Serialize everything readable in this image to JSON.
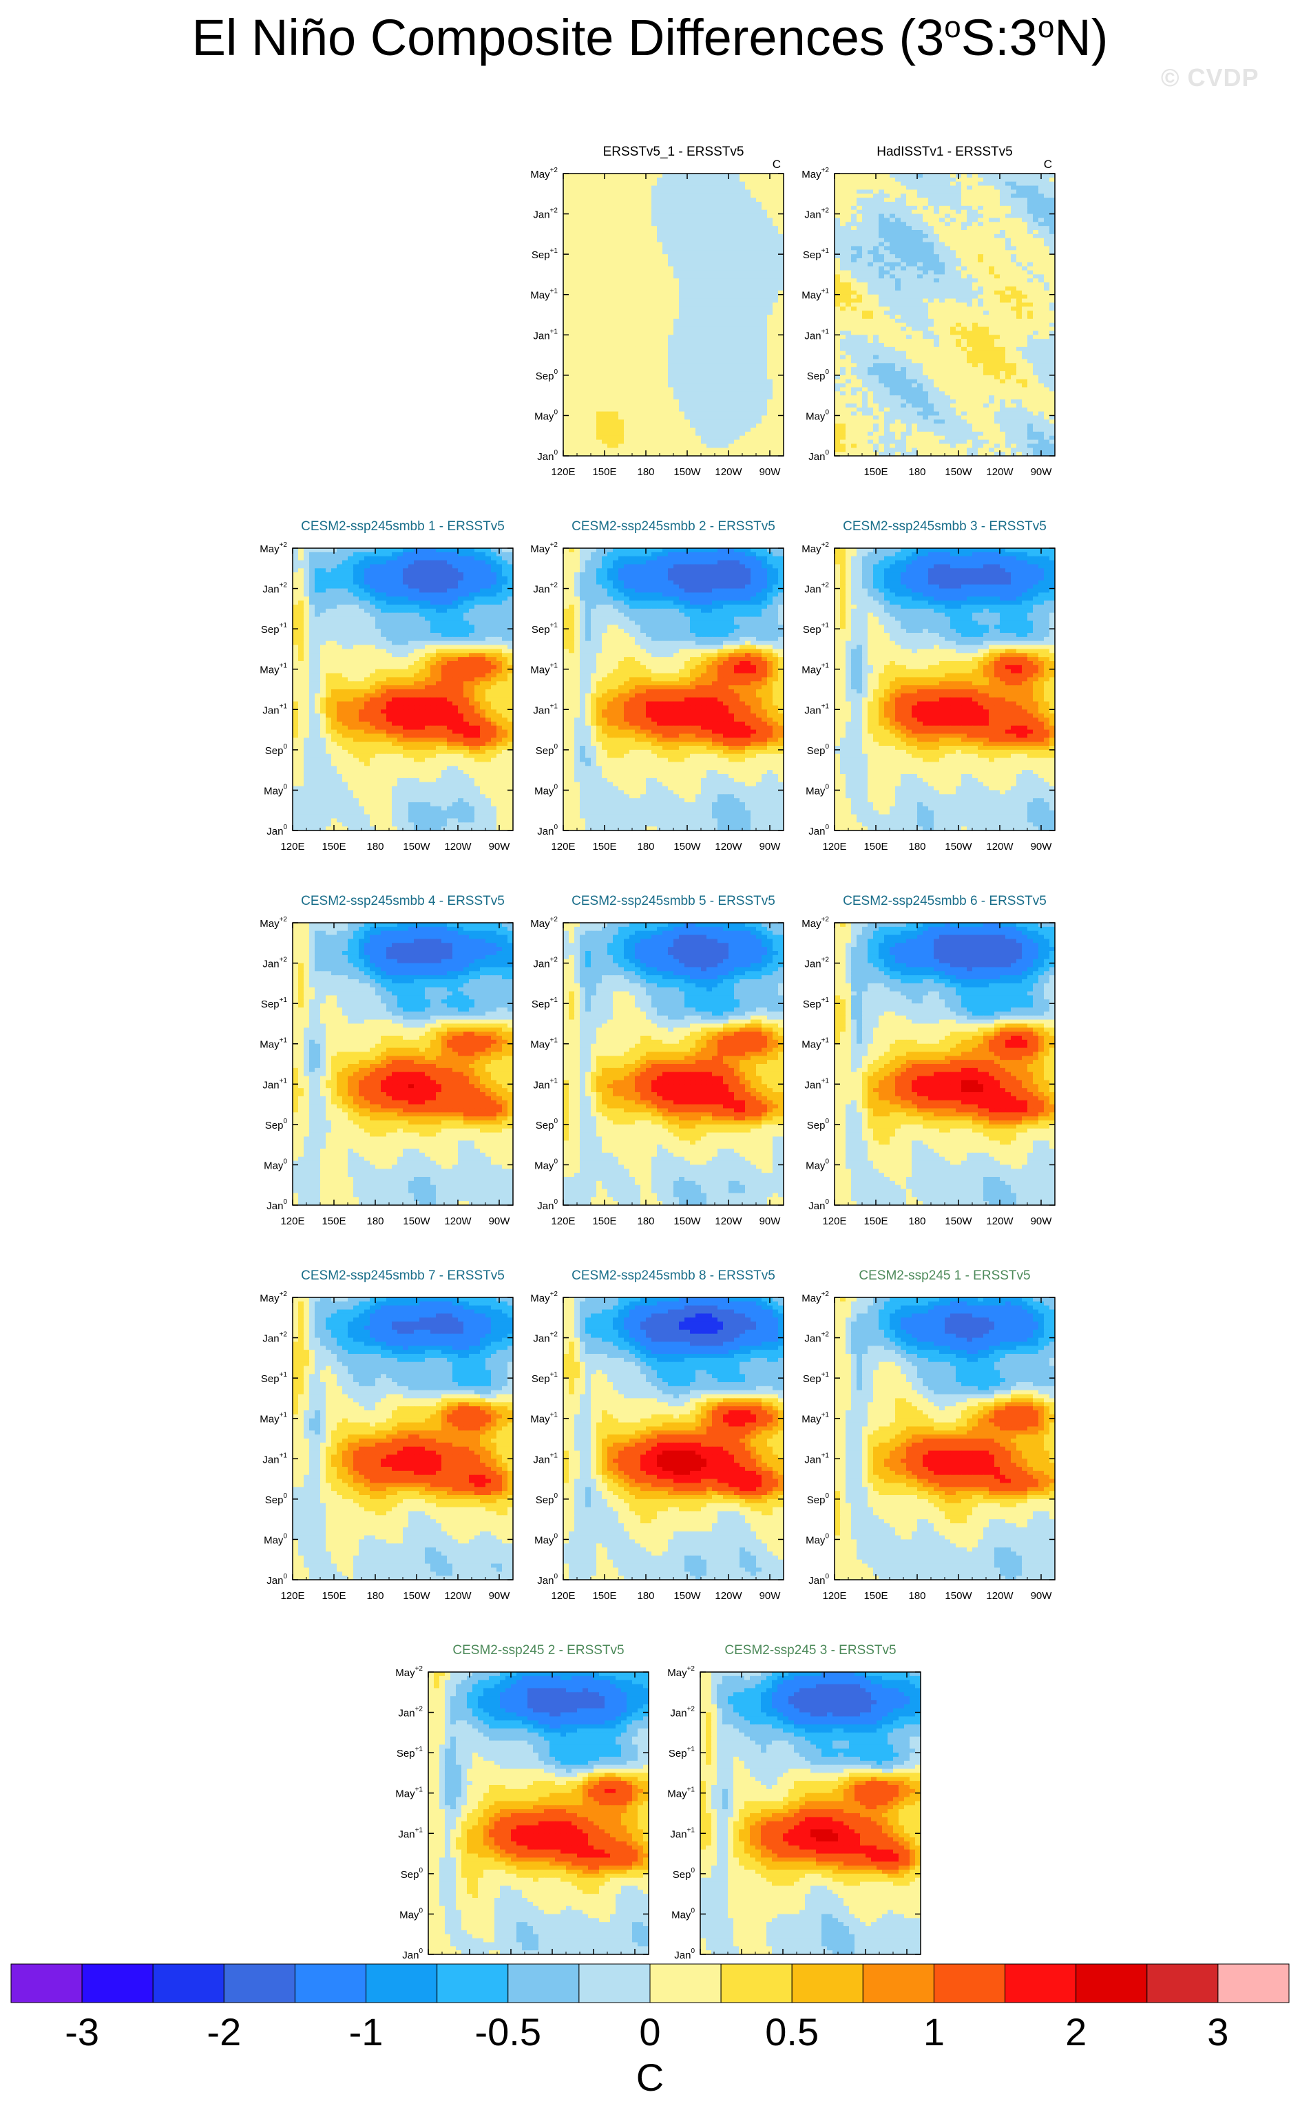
{
  "title": {
    "prefix": "El Niño Composite Differences (3",
    "deg1": "o",
    "mid": "S:3",
    "deg2": "o",
    "suffix": "N)"
  },
  "watermark": "© CVDP",
  "chart_data": {
    "type": "heatmap",
    "y_tick_labels": [
      {
        "base": "May",
        "sup": "+2"
      },
      {
        "base": "Jan",
        "sup": "+2"
      },
      {
        "base": "Sep",
        "sup": "+1"
      },
      {
        "base": "May",
        "sup": "+1"
      },
      {
        "base": "Jan",
        "sup": "+1"
      },
      {
        "base": "Sep",
        "sup": "0"
      },
      {
        "base": "May",
        "sup": "0"
      },
      {
        "base": "Jan",
        "sup": "0"
      }
    ],
    "x_ticks": [
      {
        "lon": 120,
        "label": "120E"
      },
      {
        "lon": 150,
        "label": "150E"
      },
      {
        "lon": 180,
        "label": "180"
      },
      {
        "lon": 210,
        "label": "150W"
      },
      {
        "lon": 240,
        "label": "120W"
      },
      {
        "lon": 270,
        "label": "90W"
      }
    ],
    "x_range": [
      120,
      280
    ],
    "panels": [
      {
        "title": "ERSSTv5_1 - ERSSTv5",
        "unit": "C",
        "color": "#000000",
        "pattern": "obs1",
        "amp": 1.0
      },
      {
        "title": "HadISSTv1 - ERSSTv5",
        "unit": "C",
        "color": "#000000",
        "pattern": "obs2",
        "amp": 1.0
      },
      {
        "title": "CESM2-ssp245smbb 1 - ERSSTv5",
        "color": "#1a6e8a",
        "pattern": "model",
        "amp": 1.0
      },
      {
        "title": "CESM2-ssp245smbb 2 - ERSSTv5",
        "color": "#1a6e8a",
        "pattern": "model",
        "amp": 1.05
      },
      {
        "title": "CESM2-ssp245smbb 3 - ERSSTv5",
        "color": "#1a6e8a",
        "pattern": "model",
        "amp": 1.0
      },
      {
        "title": "CESM2-ssp245smbb 4 - ERSSTv5",
        "color": "#1a6e8a",
        "pattern": "model",
        "amp": 0.95
      },
      {
        "title": "CESM2-ssp245smbb 5 - ERSSTv5",
        "color": "#1a6e8a",
        "pattern": "model",
        "amp": 1.0
      },
      {
        "title": "CESM2-ssp245smbb 6 - ERSSTv5",
        "color": "#1a6e8a",
        "pattern": "model",
        "amp": 1.1
      },
      {
        "title": "CESM2-ssp245smbb 7 - ERSSTv5",
        "color": "#1a6e8a",
        "pattern": "model",
        "amp": 0.95
      },
      {
        "title": "CESM2-ssp245smbb 8 - ERSSTv5",
        "color": "#1a6e8a",
        "pattern": "model",
        "amp": 1.2
      },
      {
        "title": "CESM2-ssp245 1 - ERSSTv5",
        "color": "#4d8a5a",
        "pattern": "model",
        "amp": 0.95
      },
      {
        "title": "CESM2-ssp245 2 - ERSSTv5",
        "color": "#4d8a5a",
        "pattern": "model",
        "amp": 1.0
      },
      {
        "title": "CESM2-ssp245 3 - ERSSTv5",
        "color": "#4d8a5a",
        "pattern": "model",
        "amp": 1.05
      }
    ],
    "colorbar": {
      "levels": [
        -3,
        -2.5,
        -2,
        -1.5,
        -1,
        -0.75,
        -0.5,
        -0.25,
        0,
        0.25,
        0.5,
        0.75,
        1,
        1.5,
        2,
        2.5,
        3
      ],
      "colors": [
        "#7b1ce8",
        "#2a0cff",
        "#1c35f2",
        "#3a6ae0",
        "#2a86ff",
        "#139ef5",
        "#2bb9fb",
        "#7ec6f0",
        "#b7e0f2",
        "#fdf59a",
        "#fde13e",
        "#fbbe12",
        "#fc8e0c",
        "#fb5810",
        "#fe1010",
        "#e00000",
        "#d4282a",
        "#feb2b2"
      ],
      "tick_labels": [
        "-3",
        "-2",
        "-1",
        "-0.5",
        "0",
        "0.5",
        "1",
        "2",
        "3"
      ],
      "tick_levels": [
        -3,
        -2,
        -1,
        -0.5,
        0,
        0.5,
        1,
        2,
        3
      ],
      "unit": "C"
    }
  }
}
